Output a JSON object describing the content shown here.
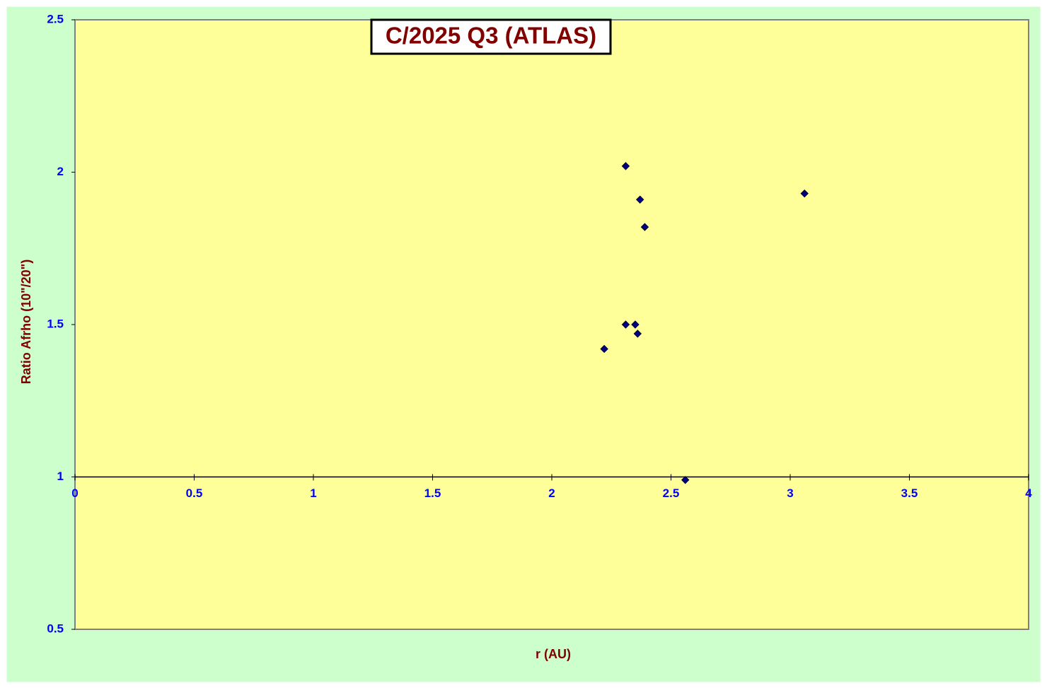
{
  "chart_data": {
    "type": "scatter",
    "title": "C/2025 Q3 (ATLAS)",
    "x_label": "r (AU)",
    "y_label": "Ratio Afrho (10\"/20\")",
    "x": [
      2.31,
      2.37,
      2.39,
      3.06,
      2.31,
      2.35,
      2.36,
      2.22,
      2.56
    ],
    "values": [
      2.02,
      1.91,
      1.82,
      1.93,
      1.5,
      1.5,
      1.47,
      1.42,
      0.99
    ],
    "color": "#000080",
    "xlim": [
      0,
      4
    ],
    "xticks": [
      0,
      0.5,
      1,
      1.5,
      2,
      2.5,
      3,
      3.5,
      4
    ],
    "ylim": [
      0.5,
      2.5
    ],
    "yticks": [
      0.5,
      1,
      1.5,
      2,
      2.5
    ],
    "x_axis_crosses_y": 1
  }
}
